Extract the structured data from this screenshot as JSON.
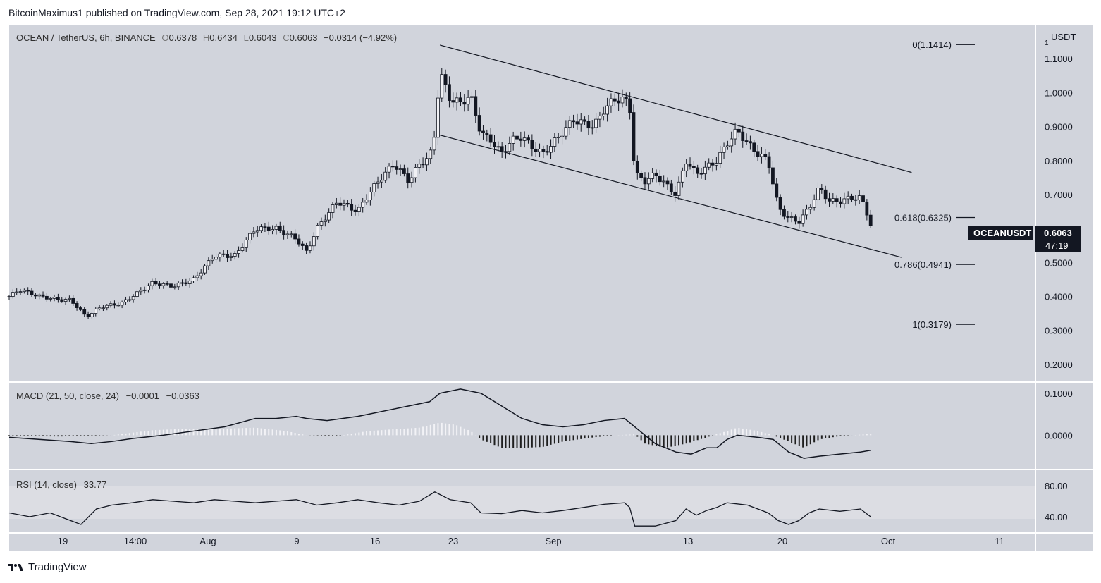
{
  "header": {
    "publisher": "BitcoinMaximus1 published on TradingView.com, Sep 28, 2021 19:12 UTC+2"
  },
  "footer": {
    "brand": "TradingView"
  },
  "colors": {
    "panel_bg": "#d1d4dc",
    "rsi_band": "#dcdde3",
    "line": "#131722",
    "hist_pos": "#e8e8ee",
    "hist_neg": "#1f1f1f"
  },
  "chart_data": [
    {
      "type": "candlestick",
      "legend": {
        "symbol": "OCEAN / TetherUS, 6h, BINANCE",
        "o_label": "O",
        "o": "0.6378",
        "h_label": "H",
        "h": "0.6434",
        "l_label": "L",
        "l": "0.6043",
        "c_label": "C",
        "c": "0.6063",
        "change": "−0.0314 (−4.92%)"
      },
      "price_axis_unit": "USDT",
      "price_axis_unit_small": "1",
      "y_ticks": [
        "1.1000",
        "1.0000",
        "0.9000",
        "0.8000",
        "0.7000",
        "0.6000",
        "0.5000",
        "0.4000",
        "0.3000",
        "0.2000"
      ],
      "x_ticks": [
        "19",
        "14:00",
        "Aug",
        "9",
        "16",
        "23",
        "Sep",
        "13",
        "20",
        "Oct",
        "11"
      ],
      "ylim": [
        0.15,
        1.2
      ],
      "last_price": {
        "symbol": "OCEANUSDT",
        "value": "0.6063",
        "countdown": "47:19"
      },
      "fibonacci": [
        {
          "label": "0(1.1414)",
          "value": 1.1414
        },
        {
          "label": "0.618(0.6325)",
          "value": 0.6325
        },
        {
          "label": "0.786(0.4941)",
          "value": 0.4941
        },
        {
          "label": "1(0.3179)",
          "value": 0.3179
        }
      ],
      "channel": {
        "upper": [
          [
            0.42,
            1.14
          ],
          [
            0.88,
            0.765
          ]
        ],
        "lower": [
          [
            0.42,
            0.875
          ],
          [
            0.87,
            0.515
          ]
        ]
      },
      "price_path": [
        [
          0.0,
          0.4
        ],
        [
          0.01,
          0.42
        ],
        [
          0.03,
          0.4
        ],
        [
          0.05,
          0.39
        ],
        [
          0.06,
          0.39
        ],
        [
          0.075,
          0.34
        ],
        [
          0.09,
          0.37
        ],
        [
          0.11,
          0.38
        ],
        [
          0.12,
          0.4
        ],
        [
          0.14,
          0.44
        ],
        [
          0.16,
          0.43
        ],
        [
          0.18,
          0.45
        ],
        [
          0.2,
          0.52
        ],
        [
          0.22,
          0.52
        ],
        [
          0.24,
          0.6
        ],
        [
          0.26,
          0.6
        ],
        [
          0.28,
          0.57
        ],
        [
          0.29,
          0.53
        ],
        [
          0.3,
          0.6
        ],
        [
          0.32,
          0.68
        ],
        [
          0.34,
          0.65
        ],
        [
          0.35,
          0.7
        ],
        [
          0.36,
          0.74
        ],
        [
          0.375,
          0.79
        ],
        [
          0.39,
          0.74
        ],
        [
          0.4,
          0.79
        ],
        [
          0.41,
          0.81
        ],
        [
          0.415,
          0.88
        ],
        [
          0.42,
          1.06
        ],
        [
          0.43,
          0.98
        ],
        [
          0.44,
          0.97
        ],
        [
          0.45,
          0.99
        ],
        [
          0.46,
          0.88
        ],
        [
          0.47,
          0.86
        ],
        [
          0.48,
          0.82
        ],
        [
          0.49,
          0.86
        ],
        [
          0.5,
          0.87
        ],
        [
          0.51,
          0.84
        ],
        [
          0.52,
          0.82
        ],
        [
          0.53,
          0.85
        ],
        [
          0.55,
          0.92
        ],
        [
          0.57,
          0.9
        ],
        [
          0.58,
          0.95
        ],
        [
          0.59,
          0.98
        ],
        [
          0.6,
          0.98
        ],
        [
          0.605,
          0.96
        ],
        [
          0.61,
          0.76
        ],
        [
          0.62,
          0.74
        ],
        [
          0.63,
          0.76
        ],
        [
          0.64,
          0.73
        ],
        [
          0.65,
          0.7
        ],
        [
          0.66,
          0.8
        ],
        [
          0.67,
          0.76
        ],
        [
          0.68,
          0.78
        ],
        [
          0.69,
          0.8
        ],
        [
          0.7,
          0.85
        ],
        [
          0.71,
          0.89
        ],
        [
          0.72,
          0.85
        ],
        [
          0.73,
          0.82
        ],
        [
          0.74,
          0.8
        ],
        [
          0.75,
          0.66
        ],
        [
          0.76,
          0.63
        ],
        [
          0.77,
          0.62
        ],
        [
          0.78,
          0.66
        ],
        [
          0.79,
          0.72
        ],
        [
          0.8,
          0.68
        ],
        [
          0.81,
          0.68
        ],
        [
          0.82,
          0.69
        ],
        [
          0.83,
          0.69
        ],
        [
          0.835,
          0.66
        ],
        [
          0.84,
          0.61
        ]
      ]
    },
    {
      "type": "line",
      "legend": {
        "name": "MACD (21, 50, close, 24)",
        "v1": "−0.0001",
        "v2": "−0.0363"
      },
      "y_ticks": [
        "0.1000",
        "0.0000"
      ],
      "ylim": [
        -0.08,
        0.125
      ],
      "macd_line": [
        [
          0.0,
          -0.005
        ],
        [
          0.03,
          -0.01
        ],
        [
          0.06,
          -0.015
        ],
        [
          0.08,
          -0.02
        ],
        [
          0.1,
          -0.015
        ],
        [
          0.12,
          -0.008
        ],
        [
          0.15,
          0.0
        ],
        [
          0.18,
          0.01
        ],
        [
          0.21,
          0.02
        ],
        [
          0.24,
          0.04
        ],
        [
          0.26,
          0.04
        ],
        [
          0.28,
          0.045
        ],
        [
          0.29,
          0.04
        ],
        [
          0.31,
          0.035
        ],
        [
          0.34,
          0.045
        ],
        [
          0.37,
          0.06
        ],
        [
          0.39,
          0.07
        ],
        [
          0.41,
          0.08
        ],
        [
          0.42,
          0.1
        ],
        [
          0.44,
          0.11
        ],
        [
          0.46,
          0.1
        ],
        [
          0.48,
          0.07
        ],
        [
          0.5,
          0.04
        ],
        [
          0.52,
          0.025
        ],
        [
          0.54,
          0.02
        ],
        [
          0.56,
          0.025
        ],
        [
          0.58,
          0.035
        ],
        [
          0.6,
          0.04
        ],
        [
          0.61,
          0.02
        ],
        [
          0.63,
          -0.02
        ],
        [
          0.65,
          -0.04
        ],
        [
          0.665,
          -0.045
        ],
        [
          0.68,
          -0.03
        ],
        [
          0.69,
          -0.03
        ],
        [
          0.7,
          -0.01
        ],
        [
          0.71,
          0.0
        ],
        [
          0.73,
          -0.005
        ],
        [
          0.745,
          -0.01
        ],
        [
          0.76,
          -0.04
        ],
        [
          0.775,
          -0.055
        ],
        [
          0.79,
          -0.05
        ],
        [
          0.81,
          -0.045
        ],
        [
          0.83,
          -0.04
        ],
        [
          0.84,
          -0.036
        ]
      ],
      "histogram": [
        [
          0.0,
          -0.002
        ],
        [
          0.05,
          -0.003
        ],
        [
          0.1,
          0.0
        ],
        [
          0.14,
          0.012
        ],
        [
          0.17,
          0.015
        ],
        [
          0.2,
          0.015
        ],
        [
          0.24,
          0.018
        ],
        [
          0.27,
          0.01
        ],
        [
          0.29,
          0.0
        ],
        [
          0.32,
          -0.002
        ],
        [
          0.35,
          0.01
        ],
        [
          0.38,
          0.015
        ],
        [
          0.4,
          0.018
        ],
        [
          0.42,
          0.03
        ],
        [
          0.435,
          0.025
        ],
        [
          0.45,
          0.01
        ],
        [
          0.46,
          -0.01
        ],
        [
          0.48,
          -0.03
        ],
        [
          0.5,
          -0.03
        ],
        [
          0.52,
          -0.028
        ],
        [
          0.54,
          -0.015
        ],
        [
          0.57,
          -0.005
        ],
        [
          0.59,
          0.0
        ],
        [
          0.61,
          0.002
        ],
        [
          0.62,
          -0.02
        ],
        [
          0.64,
          -0.03
        ],
        [
          0.66,
          -0.02
        ],
        [
          0.68,
          -0.005
        ],
        [
          0.7,
          0.01
        ],
        [
          0.71,
          0.018
        ],
        [
          0.73,
          0.01
        ],
        [
          0.745,
          0.0
        ],
        [
          0.76,
          -0.015
        ],
        [
          0.775,
          -0.03
        ],
        [
          0.79,
          -0.01
        ],
        [
          0.81,
          -0.002
        ],
        [
          0.84,
          0.003
        ]
      ]
    },
    {
      "type": "line",
      "legend": {
        "name": "RSI (14, close)",
        "value": "33.77"
      },
      "y_ticks": [
        "80.00",
        "40.00"
      ],
      "ylim": [
        20,
        100
      ],
      "band": [
        30,
        70
      ],
      "rsi_line": [
        [
          0.0,
          45
        ],
        [
          0.02,
          40
        ],
        [
          0.04,
          45
        ],
        [
          0.06,
          35
        ],
        [
          0.07,
          30
        ],
        [
          0.085,
          50
        ],
        [
          0.1,
          55
        ],
        [
          0.12,
          58
        ],
        [
          0.14,
          62
        ],
        [
          0.16,
          60
        ],
        [
          0.18,
          58
        ],
        [
          0.2,
          62
        ],
        [
          0.22,
          60
        ],
        [
          0.24,
          58
        ],
        [
          0.26,
          60
        ],
        [
          0.28,
          62
        ],
        [
          0.3,
          55
        ],
        [
          0.32,
          58
        ],
        [
          0.34,
          62
        ],
        [
          0.36,
          58
        ],
        [
          0.38,
          55
        ],
        [
          0.4,
          60
        ],
        [
          0.415,
          72
        ],
        [
          0.43,
          62
        ],
        [
          0.45,
          58
        ],
        [
          0.46,
          45
        ],
        [
          0.48,
          44
        ],
        [
          0.5,
          48
        ],
        [
          0.52,
          45
        ],
        [
          0.54,
          48
        ],
        [
          0.56,
          52
        ],
        [
          0.58,
          56
        ],
        [
          0.6,
          58
        ],
        [
          0.605,
          52
        ],
        [
          0.61,
          28
        ],
        [
          0.63,
          28
        ],
        [
          0.65,
          35
        ],
        [
          0.66,
          50
        ],
        [
          0.67,
          42
        ],
        [
          0.68,
          48
        ],
        [
          0.69,
          52
        ],
        [
          0.7,
          58
        ],
        [
          0.72,
          55
        ],
        [
          0.74,
          45
        ],
        [
          0.75,
          35
        ],
        [
          0.76,
          30
        ],
        [
          0.77,
          35
        ],
        [
          0.78,
          45
        ],
        [
          0.79,
          50
        ],
        [
          0.81,
          47
        ],
        [
          0.83,
          50
        ],
        [
          0.84,
          40
        ]
      ]
    }
  ]
}
